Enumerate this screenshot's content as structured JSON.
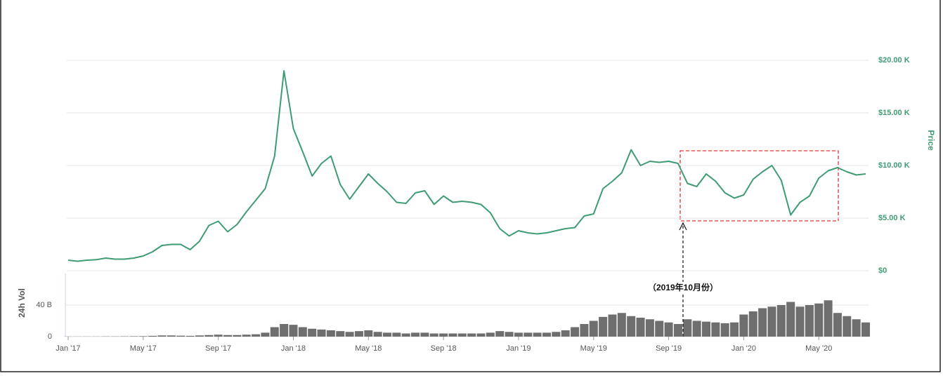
{
  "chart_data": [
    {
      "type": "line",
      "y_label": "Price",
      "color": "#3f9b73",
      "ylim": [
        0,
        20000
      ],
      "yticks": [
        {
          "value": 0,
          "label": "$0"
        },
        {
          "value": 5000,
          "label": "$5.00 K"
        },
        {
          "value": 10000,
          "label": "$10.00 K"
        },
        {
          "value": 15000,
          "label": "$15.00 K"
        },
        {
          "value": 20000,
          "label": "$20.00 K"
        }
      ],
      "grid": true,
      "annotation": "（2019年10月份）",
      "values": [
        1000,
        900,
        1000,
        1050,
        1200,
        1100,
        1100,
        1200,
        1400,
        1800,
        2400,
        2500,
        2500,
        2000,
        2800,
        4300,
        4700,
        3700,
        4400,
        5600,
        6700,
        7800,
        10900,
        19000,
        13500,
        11300,
        9000,
        10200,
        10900,
        8200,
        6800,
        8000,
        9200,
        8300,
        7500,
        6500,
        6400,
        7400,
        7600,
        6300,
        7100,
        6500,
        6600,
        6500,
        6300,
        5500,
        4000,
        3300,
        3800,
        3600,
        3500,
        3600,
        3800,
        4000,
        4100,
        5200,
        5400,
        7800,
        8500,
        9300,
        11500,
        10000,
        10400,
        10300,
        10400,
        10200,
        8300,
        8000,
        9200,
        8500,
        7400,
        6900,
        7200,
        8700,
        9400,
        10000,
        8600,
        5300,
        6500,
        7100,
        8800,
        9500,
        9800,
        9400,
        9100,
        9200
      ]
    },
    {
      "type": "bar",
      "y_label": "24h Vol",
      "color": "#6e6e6e",
      "ylim": [
        0,
        80
      ],
      "yticks": [
        0,
        {
          "value": 40,
          "label": "40 B"
        }
      ],
      "categories": [
        "Jan '17",
        null,
        null,
        null,
        null,
        null,
        null,
        null,
        "May '17",
        null,
        null,
        null,
        null,
        null,
        null,
        null,
        "Sep '17",
        null,
        null,
        null,
        null,
        null,
        null,
        null,
        "Jan '18",
        null,
        null,
        null,
        null,
        null,
        null,
        null,
        "May '18",
        null,
        null,
        null,
        null,
        null,
        null,
        null,
        "Sep '18",
        null,
        null,
        null,
        null,
        null,
        null,
        null,
        "Jan '19",
        null,
        null,
        null,
        null,
        null,
        null,
        null,
        "May '19",
        null,
        null,
        null,
        null,
        null,
        null,
        null,
        "Sep '19",
        null,
        null,
        null,
        null,
        null,
        null,
        null,
        "Jan '20",
        null,
        null,
        null,
        null,
        null,
        null,
        null,
        "May '20",
        null,
        null,
        null,
        null,
        null
      ],
      "values": [
        0.2,
        0.2,
        0.2,
        0.2,
        0.3,
        0.3,
        0.4,
        0.5,
        0.6,
        1,
        1.5,
        1.5,
        1.2,
        1,
        1.5,
        2,
        2.5,
        2,
        2,
        2.5,
        3,
        5,
        12,
        16,
        15,
        12,
        10,
        9,
        8,
        7,
        6,
        7,
        8,
        6,
        5,
        5,
        4,
        5,
        5,
        4,
        4,
        4,
        4,
        4,
        4,
        5,
        7,
        6,
        5,
        5,
        5,
        5,
        6,
        8,
        12,
        16,
        20,
        25,
        28,
        30,
        26,
        24,
        22,
        20,
        18,
        16,
        22,
        20,
        19,
        18,
        17,
        18,
        28,
        32,
        36,
        38,
        40,
        44,
        38,
        40,
        42,
        46,
        30,
        26,
        22,
        18
      ]
    }
  ]
}
